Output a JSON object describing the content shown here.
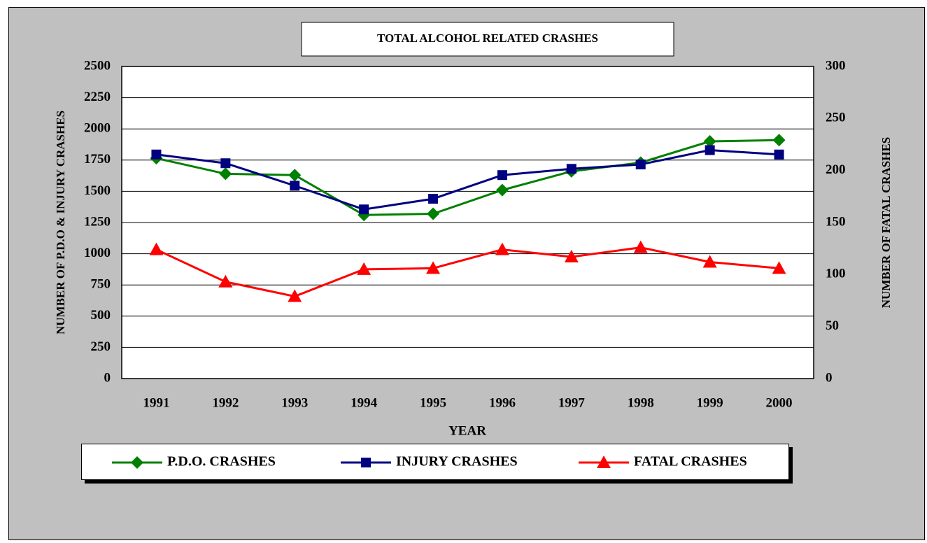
{
  "chart_data": {
    "type": "line",
    "title": "TOTAL ALCOHOL RELATED CRASHES",
    "x_label": "YEAR",
    "y_label": "NUMBER OF P.D.O & INJURY CRASHES",
    "y2_label": "NUMBER OF FATAL CRASHES",
    "categories": [
      "1991",
      "1992",
      "1993",
      "1994",
      "1995",
      "1996",
      "1997",
      "1998",
      "1999",
      "2000"
    ],
    "series": [
      {
        "name": "P.D.O. CRASHES",
        "color": "#008000",
        "marker": "diamond",
        "values": [
          1765,
          1640,
          1630,
          1310,
          1320,
          1510,
          1660,
          1730,
          1900,
          1910
        ]
      },
      {
        "name": "INJURY CRASHES",
        "color": "#000080",
        "marker": "square",
        "values": [
          1795,
          1725,
          1545,
          1355,
          1440,
          1630,
          1680,
          1715,
          1830,
          1795
        ]
      },
      {
        "name": "FATAL CRASHES",
        "color": "#ff0000",
        "marker": "triangle",
        "axis": "y2",
        "values": [
          124,
          93,
          79,
          105,
          106,
          124,
          117,
          126,
          112,
          106
        ]
      }
    ],
    "ylim": [
      0,
      2500
    ],
    "yticks": [
      0,
      250,
      500,
      750,
      1000,
      1250,
      1500,
      1750,
      2000,
      2250,
      2500
    ],
    "y2lim": [
      0,
      300
    ],
    "y2ticks": [
      0,
      50,
      100,
      150,
      200,
      250,
      300
    ],
    "grid": true,
    "legend": "bottom"
  }
}
